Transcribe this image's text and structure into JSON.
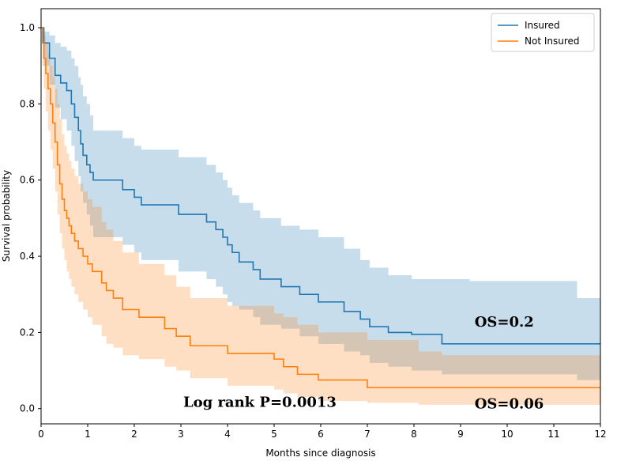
{
  "chart_data": {
    "type": "line",
    "step": true,
    "xlabel": "Months since diagnosis",
    "ylabel": "Survival probability",
    "xlim": [
      0,
      12
    ],
    "ylim": [
      -0.04,
      1.05
    ],
    "xticks": [
      0,
      1,
      2,
      3,
      4,
      5,
      6,
      7,
      8,
      9,
      10,
      11,
      12
    ],
    "yticks": [
      0.0,
      0.2,
      0.4,
      0.6,
      0.8,
      1.0
    ],
    "xtick_labels": [
      "0",
      "1",
      "2",
      "3",
      "4",
      "5",
      "6",
      "7",
      "8",
      "9",
      "10",
      "11",
      "12"
    ],
    "ytick_labels": [
      "0.0",
      "0.2",
      "0.4",
      "0.6",
      "0.8",
      "1.0"
    ],
    "grid": false,
    "legend_position": "top-right",
    "series": [
      {
        "name": "Insured",
        "color": "#1f77b4",
        "band_color": "#1f77b4",
        "x": [
          0,
          0.06,
          0.18,
          0.3,
          0.42,
          0.55,
          0.65,
          0.72,
          0.8,
          0.85,
          0.9,
          0.98,
          1.05,
          1.12,
          1.75,
          2.0,
          2.15,
          2.95,
          3.55,
          3.75,
          3.9,
          4.0,
          4.1,
          4.25,
          4.55,
          4.7,
          5.15,
          5.55,
          5.95,
          6.5,
          6.85,
          7.05,
          7.45,
          7.95,
          8.6,
          9.2,
          11.5,
          12
        ],
        "y": [
          1.0,
          0.96,
          0.92,
          0.875,
          0.855,
          0.835,
          0.8,
          0.765,
          0.73,
          0.695,
          0.665,
          0.64,
          0.62,
          0.6,
          0.575,
          0.555,
          0.535,
          0.51,
          0.49,
          0.47,
          0.45,
          0.43,
          0.41,
          0.385,
          0.365,
          0.34,
          0.32,
          0.3,
          0.28,
          0.255,
          0.235,
          0.215,
          0.2,
          0.195,
          0.17,
          0.17,
          0.17,
          0.17
        ],
        "upper": [
          1.0,
          0.99,
          0.98,
          0.96,
          0.95,
          0.94,
          0.92,
          0.9,
          0.87,
          0.85,
          0.82,
          0.8,
          0.77,
          0.73,
          0.71,
          0.69,
          0.68,
          0.66,
          0.64,
          0.62,
          0.6,
          0.58,
          0.56,
          0.54,
          0.52,
          0.5,
          0.48,
          0.47,
          0.45,
          0.42,
          0.39,
          0.37,
          0.35,
          0.34,
          0.34,
          0.335,
          0.29,
          0.29
        ],
        "lower": [
          1.0,
          0.9,
          0.85,
          0.79,
          0.76,
          0.73,
          0.69,
          0.65,
          0.61,
          0.57,
          0.54,
          0.51,
          0.48,
          0.45,
          0.43,
          0.41,
          0.39,
          0.36,
          0.34,
          0.32,
          0.3,
          0.28,
          0.27,
          0.26,
          0.24,
          0.22,
          0.21,
          0.19,
          0.17,
          0.15,
          0.14,
          0.12,
          0.11,
          0.1,
          0.09,
          0.09,
          0.075,
          0.075
        ]
      },
      {
        "name": "Not Insured",
        "color": "#ff7f0e",
        "band_color": "#ff7f0e",
        "x": [
          0,
          0.03,
          0.06,
          0.1,
          0.15,
          0.2,
          0.25,
          0.3,
          0.35,
          0.4,
          0.45,
          0.5,
          0.55,
          0.6,
          0.65,
          0.72,
          0.8,
          0.9,
          1.0,
          1.1,
          1.3,
          1.4,
          1.55,
          1.75,
          2.1,
          2.65,
          2.9,
          3.2,
          4.0,
          5.0,
          5.2,
          5.5,
          5.95,
          7.0,
          8.1,
          8.6,
          12
        ],
        "y": [
          1.0,
          0.96,
          0.92,
          0.88,
          0.84,
          0.8,
          0.75,
          0.7,
          0.64,
          0.59,
          0.55,
          0.52,
          0.5,
          0.48,
          0.46,
          0.44,
          0.42,
          0.4,
          0.38,
          0.36,
          0.33,
          0.31,
          0.29,
          0.26,
          0.24,
          0.21,
          0.19,
          0.165,
          0.145,
          0.13,
          0.11,
          0.09,
          0.075,
          0.055,
          0.055,
          0.055,
          0.055
        ],
        "upper": [
          1.0,
          0.99,
          0.98,
          0.96,
          0.93,
          0.9,
          0.87,
          0.84,
          0.8,
          0.76,
          0.72,
          0.69,
          0.67,
          0.65,
          0.63,
          0.61,
          0.59,
          0.57,
          0.55,
          0.53,
          0.49,
          0.47,
          0.44,
          0.41,
          0.38,
          0.35,
          0.32,
          0.29,
          0.27,
          0.25,
          0.24,
          0.22,
          0.2,
          0.18,
          0.15,
          0.14,
          0.14
        ],
        "lower": [
          1.0,
          0.9,
          0.84,
          0.78,
          0.73,
          0.68,
          0.63,
          0.57,
          0.51,
          0.46,
          0.42,
          0.39,
          0.36,
          0.34,
          0.32,
          0.3,
          0.28,
          0.26,
          0.24,
          0.22,
          0.19,
          0.17,
          0.16,
          0.14,
          0.13,
          0.11,
          0.1,
          0.08,
          0.06,
          0.05,
          0.04,
          0.03,
          0.02,
          0.015,
          0.01,
          0.01,
          0.01
        ]
      }
    ],
    "annotations": [
      {
        "text": "OS=0.2",
        "x": 9.3,
        "y": 0.215,
        "size": 18
      },
      {
        "text": "OS=0.06",
        "x": 9.3,
        "y": 0.0,
        "size": 18
      },
      {
        "text": "Log rank P=0.0013",
        "x": 3.05,
        "y": 0.005,
        "size": 18
      }
    ]
  }
}
